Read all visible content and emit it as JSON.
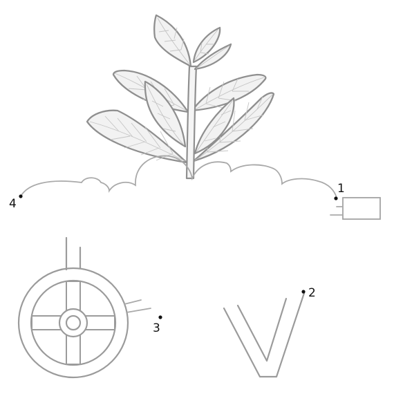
{
  "diagram": {
    "callouts": [
      {
        "id": "1",
        "label": "1"
      },
      {
        "id": "2",
        "label": "2"
      },
      {
        "id": "3",
        "label": "3"
      },
      {
        "id": "4",
        "label": "4"
      }
    ],
    "parts": [
      "plant",
      "soil-mound",
      "rectangular-block",
      "wheel",
      "v-shaped-part"
    ],
    "colors": {
      "line": "#9b9b9b",
      "leaf_fill": "#f2f2f2",
      "label": "#111111",
      "background": "#ffffff"
    }
  }
}
